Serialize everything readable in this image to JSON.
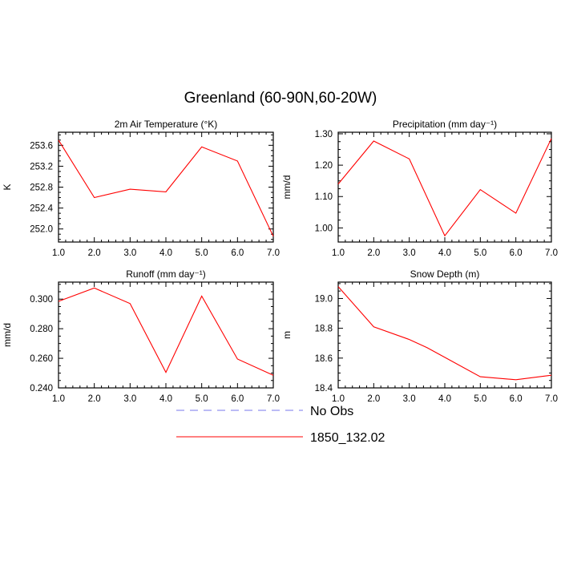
{
  "title": "Greenland (60-90N,60-20W)",
  "legend": [
    {
      "label": "No Obs",
      "color": "#7777ee",
      "dash": true
    },
    {
      "label": "1850_132.02",
      "color": "#ff0000",
      "dash": false
    }
  ],
  "chart_data": [
    {
      "type": "line",
      "title": "2m Air Temperature (°K)",
      "ylabel": "K",
      "x": [
        1.0,
        2.0,
        3.0,
        4.0,
        5.0,
        6.0,
        7.0
      ],
      "xticks": [
        "1.0",
        "2.0",
        "3.0",
        "4.0",
        "5.0",
        "6.0",
        "7.0"
      ],
      "xlim": [
        1.0,
        7.0
      ],
      "ylim": [
        251.75,
        253.85
      ],
      "yticks": [
        "252.0",
        "252.4",
        "252.8",
        "253.2",
        "253.6"
      ],
      "ytick_values": [
        252.0,
        252.4,
        252.8,
        253.2,
        253.6
      ],
      "series": [
        {
          "name": "1850_132.02",
          "color": "#ff0000",
          "values": [
            253.7,
            252.6,
            252.76,
            252.71,
            253.57,
            253.3,
            251.86
          ]
        }
      ]
    },
    {
      "type": "line",
      "title": "Precipitation (mm day⁻¹)",
      "ylabel": "mm/d",
      "x": [
        1.0,
        2.0,
        3.0,
        4.0,
        5.0,
        6.0,
        7.0
      ],
      "xticks": [
        "1.0",
        "2.0",
        "3.0",
        "4.0",
        "5.0",
        "6.0",
        "7.0"
      ],
      "xlim": [
        1.0,
        7.0
      ],
      "ylim": [
        0.955,
        1.305
      ],
      "yticks": [
        "1.00",
        "1.10",
        "1.20",
        "1.30"
      ],
      "ytick_values": [
        1.0,
        1.1,
        1.2,
        1.3
      ],
      "series": [
        {
          "name": "1850_132.02",
          "color": "#ff0000",
          "values": [
            1.14,
            1.277,
            1.22,
            0.975,
            1.122,
            1.047,
            1.285
          ]
        }
      ]
    },
    {
      "type": "line",
      "title": "Runoff (mm day⁻¹)",
      "ylabel": "mm/d",
      "x": [
        1.0,
        2.0,
        3.0,
        4.0,
        5.0,
        6.0,
        7.0
      ],
      "xticks": [
        "1.0",
        "2.0",
        "3.0",
        "4.0",
        "5.0",
        "6.0",
        "7.0"
      ],
      "xlim": [
        1.0,
        7.0
      ],
      "ylim": [
        0.24,
        0.3115
      ],
      "yticks": [
        "0.240",
        "0.260",
        "0.280",
        "0.300"
      ],
      "ytick_values": [
        0.24,
        0.26,
        0.28,
        0.3
      ],
      "series": [
        {
          "name": "1850_132.02",
          "color": "#ff0000",
          "values": [
            0.2985,
            0.3075,
            0.297,
            0.2505,
            0.302,
            0.2595,
            0.2485
          ]
        }
      ]
    },
    {
      "type": "line",
      "title": "Snow Depth (m)",
      "ylabel": "m",
      "x": [
        1.0,
        2.0,
        3.0,
        3.5,
        4.0,
        5.0,
        6.0,
        7.0
      ],
      "xticks": [
        "1.0",
        "2.0",
        "3.0",
        "4.0",
        "5.0",
        "6.0",
        "7.0"
      ],
      "xlim": [
        1.0,
        7.0
      ],
      "ylim": [
        18.4,
        19.11
      ],
      "yticks": [
        "18.4",
        "18.6",
        "18.8",
        "19.0"
      ],
      "ytick_values": [
        18.4,
        18.6,
        18.8,
        19.0
      ],
      "series": [
        {
          "name": "1850_132.02",
          "color": "#ff0000",
          "values": [
            19.08,
            18.81,
            18.725,
            18.67,
            18.605,
            18.475,
            18.455,
            18.485
          ]
        }
      ]
    }
  ]
}
